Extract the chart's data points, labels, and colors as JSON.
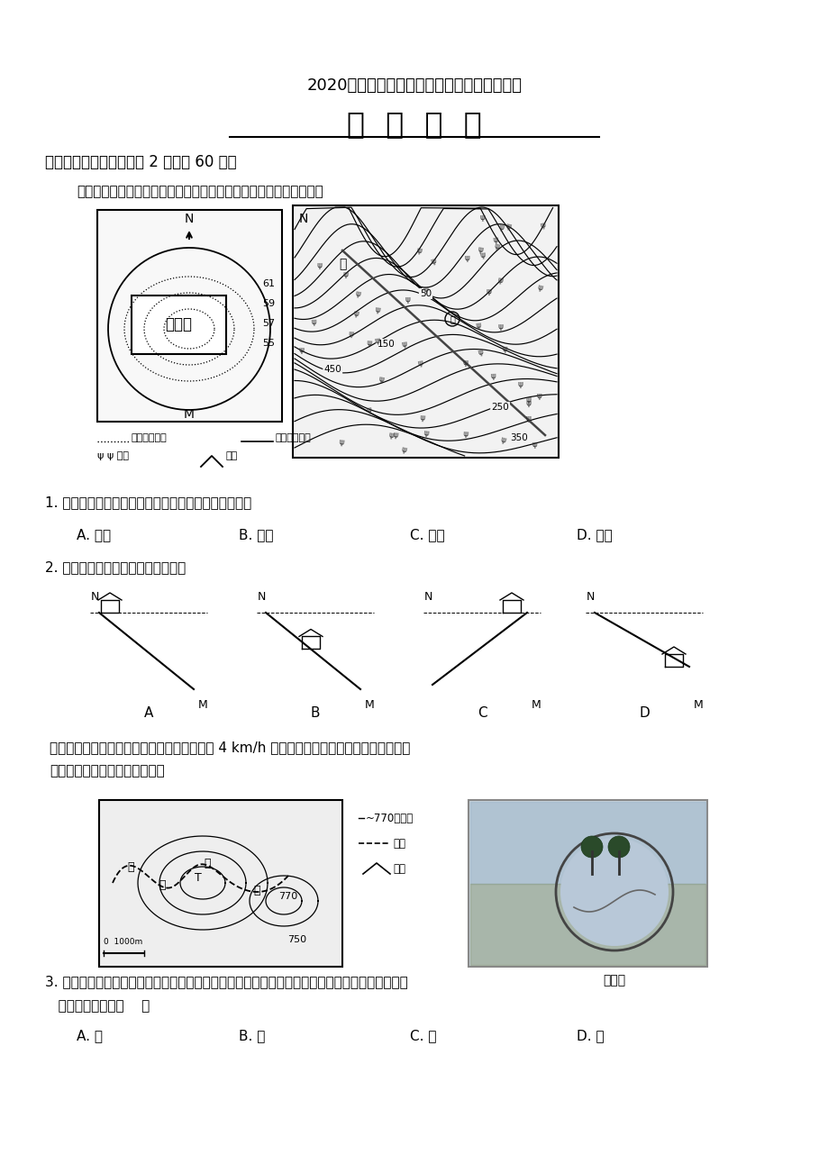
{
  "title1": "2020届江西省南康中学高三上学期第二次月考",
  "title2": "地  理  试  卦",
  "section1": "一、单项选择题（每小题 2 分，共 60 分）",
  "q_intro1": "下图为「某地地形与甲地建筑物布局示意图」。读图完成下面小题。",
  "q1": "1. 与乙地相比，将建筑物布局在甲地主要考虑的因素是",
  "q1_options": [
    "A. 地形",
    "B. 水源",
    "C. 植被",
    "D. 坡向"
  ],
  "q2": "2. 与甲地地形平整方式相符的剑面是",
  "q2_labels": [
    "A",
    "B",
    "C",
    "D"
  ],
  "q_intro2a": "暑假期间，某游客迎着旭日进入图幅范围，以 4 km/h 的速度步行于我国长江流域某山区公路",
  "q_intro2b": "（如下图）。读图完下列各题。",
  "q3a": "3. 视线受阔的公路边常设有凸面镜用于保障汽车的行车安全，利用凸面镜可看到对面来车，凸面镜",
  "q3b": "   应该设置在图中（    ）",
  "q3_options": [
    "A. 甲",
    "B. 乙",
    "C. 丙",
    "D. 丁"
  ],
  "bg_color": "#ffffff",
  "text_color": "#000000"
}
